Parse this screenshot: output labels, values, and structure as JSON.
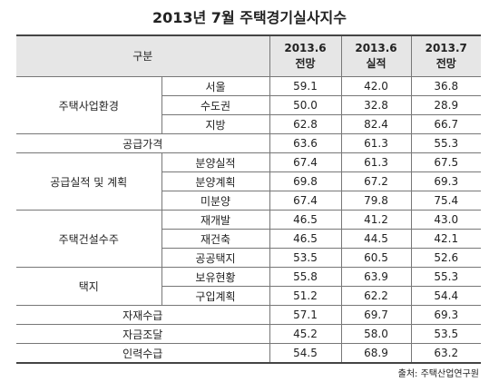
{
  "title": "2013년 7월 주택경기실사지수",
  "header": {
    "group": "구분",
    "columns": [
      [
        "2013.6",
        "전망"
      ],
      [
        "2013.6",
        "실적"
      ],
      [
        "2013.7",
        "전망"
      ]
    ]
  },
  "groups": [
    {
      "label": "주택사업환경",
      "rows": [
        {
          "label": "서울",
          "values": [
            "59.1",
            "42.0",
            "36.8"
          ]
        },
        {
          "label": "수도권",
          "values": [
            "50.0",
            "32.8",
            "28.9"
          ]
        },
        {
          "label": "지방",
          "values": [
            "62.8",
            "82.4",
            "66.7"
          ]
        }
      ]
    },
    {
      "label": "공급가격",
      "values": [
        "63.6",
        "61.3",
        "55.3"
      ]
    },
    {
      "label": "공급실적 및 계획",
      "rows": [
        {
          "label": "분양실적",
          "values": [
            "67.4",
            "61.3",
            "67.5"
          ]
        },
        {
          "label": "분양계획",
          "values": [
            "69.8",
            "67.2",
            "69.3"
          ]
        },
        {
          "label": "미분양",
          "values": [
            "67.4",
            "79.8",
            "75.4"
          ]
        }
      ]
    },
    {
      "label": "주택건설수주",
      "rows": [
        {
          "label": "재개발",
          "values": [
            "46.5",
            "41.2",
            "43.0"
          ]
        },
        {
          "label": "재건축",
          "values": [
            "46.5",
            "44.5",
            "42.1"
          ]
        },
        {
          "label": "공공택지",
          "values": [
            "53.5",
            "60.5",
            "52.6"
          ]
        }
      ]
    },
    {
      "label": "택지",
      "rows": [
        {
          "label": "보유현황",
          "values": [
            "55.8",
            "63.9",
            "55.3"
          ]
        },
        {
          "label": "구입계획",
          "values": [
            "51.2",
            "62.2",
            "54.4"
          ]
        }
      ]
    },
    {
      "label": "자재수급",
      "values": [
        "57.1",
        "69.7",
        "69.3"
      ]
    },
    {
      "label": "자금조달",
      "values": [
        "45.2",
        "58.0",
        "53.5"
      ]
    },
    {
      "label": "인력수급",
      "values": [
        "54.5",
        "68.9",
        "63.2"
      ]
    }
  ],
  "source": "출처: 주택산업연구원"
}
